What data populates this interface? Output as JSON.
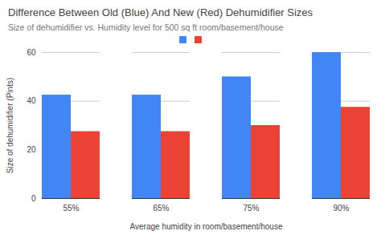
{
  "chart_data": {
    "type": "bar",
    "title": "Difference Between Old (Blue) And New (Red) Dehumidifier Sizes",
    "subtitle": "Size of dehumidifier vs. Humidity level for 500 sq ft room/basement/house",
    "x_label": "Average humidity in room/basement/house",
    "y_label": "Size of dehumidifier (Pints)",
    "categories": [
      "55%",
      "65%",
      "75%",
      "90%"
    ],
    "series": [
      {
        "color": "#4285f4",
        "values": [
          42.5,
          42.5,
          50,
          60
        ]
      },
      {
        "color": "#ea4335",
        "values": [
          27.5,
          27.5,
          30,
          37.5
        ]
      }
    ],
    "ylim": [
      0,
      60
    ],
    "yticks": [
      0,
      20,
      40,
      60
    ],
    "grid": true,
    "legend": "top"
  }
}
